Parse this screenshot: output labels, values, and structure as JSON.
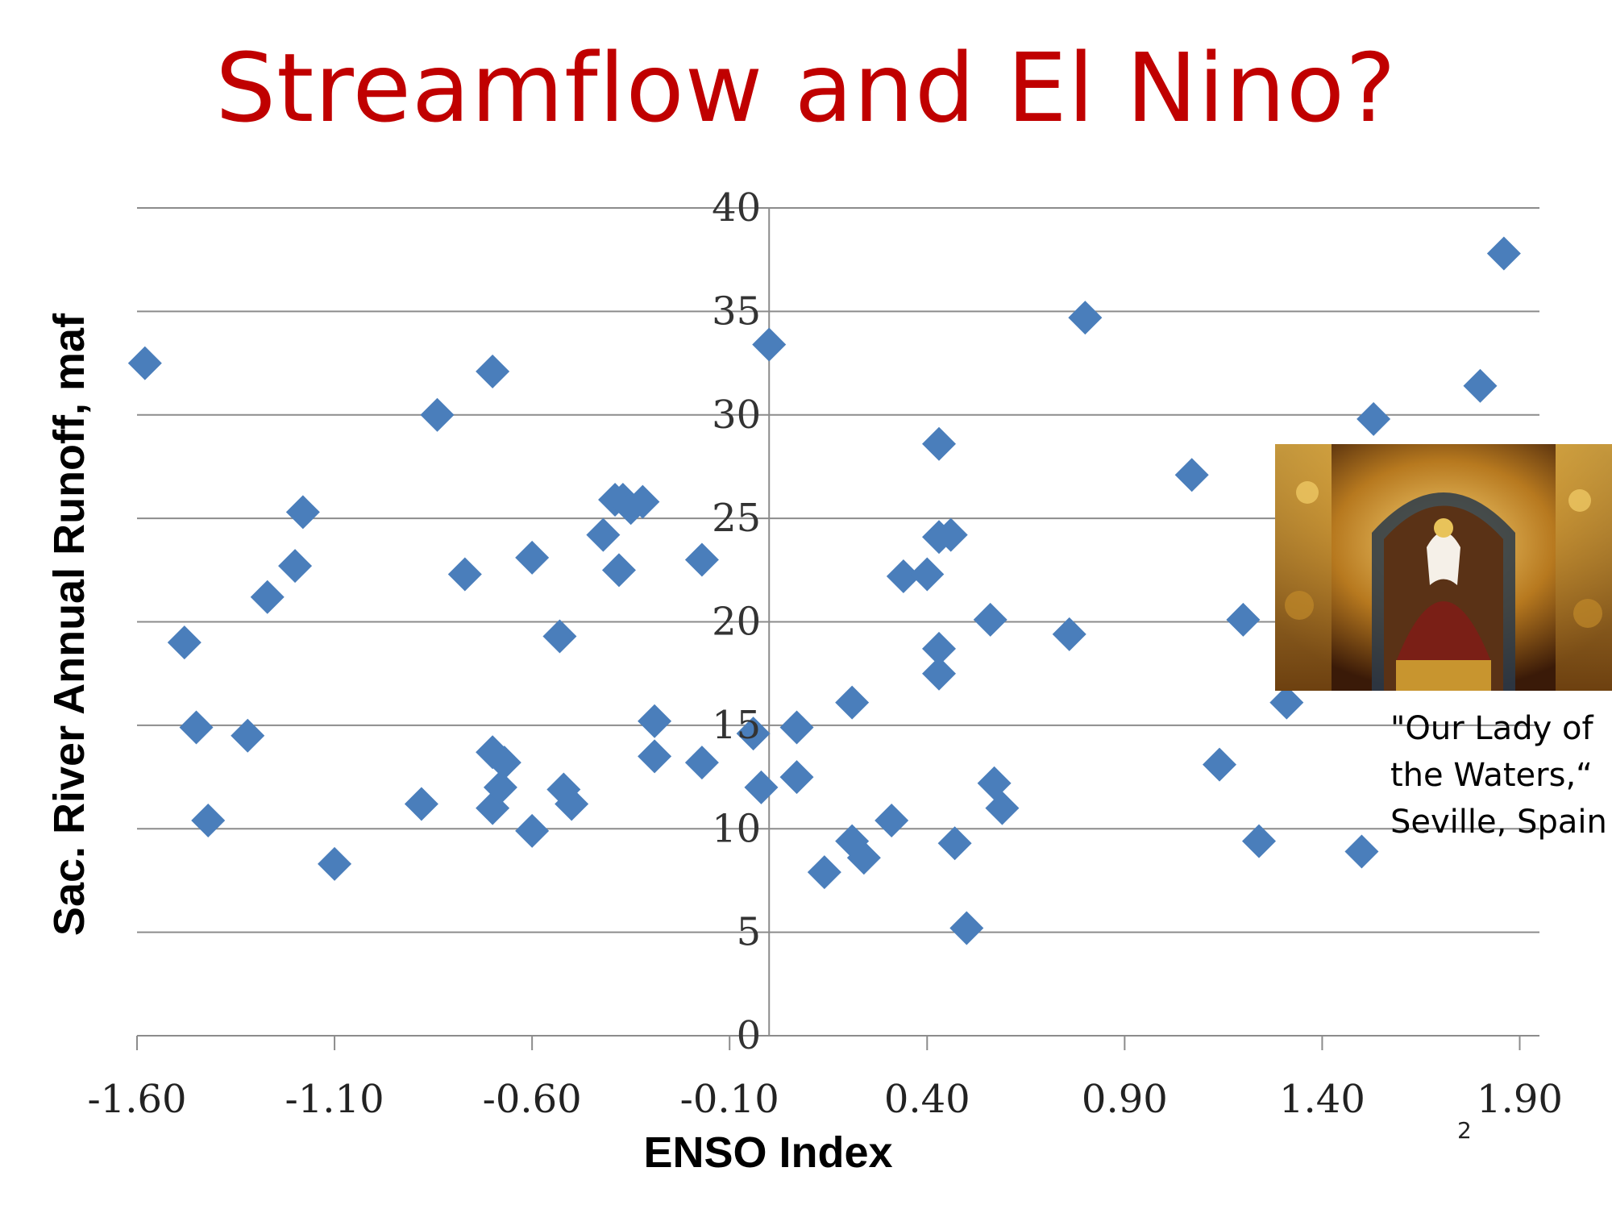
{
  "slide": {
    "title": "Streamflow and El Nino?",
    "caption_lines": [
      "\"Our Lady of",
      "the Waters,“",
      "Seville, Spain"
    ],
    "slide_number": "2",
    "photo_icon": "altar-madonna-photo"
  },
  "chart_data": {
    "type": "scatter",
    "title": "",
    "xlabel": "ENSO Index",
    "ylabel": "Sac.  River Annual Runoff, maf",
    "xlim": [
      -1.6,
      1.95
    ],
    "ylim": [
      0,
      40
    ],
    "x_ticks": [
      "-1.60",
      "-1.10",
      "-0.60",
      "-0.10",
      "0.40",
      "0.90",
      "1.40",
      "1.90"
    ],
    "y_ticks": [
      "0",
      "5",
      "10",
      "15",
      "20",
      "25",
      "30",
      "35",
      "40"
    ],
    "grid": "horizontal",
    "marker": "diamond",
    "color": "#4a7ebb",
    "series": [
      {
        "points": [
          [
            -1.58,
            32.5
          ],
          [
            -1.48,
            19.0
          ],
          [
            -1.45,
            14.9
          ],
          [
            -1.42,
            10.4
          ],
          [
            -1.32,
            14.5
          ],
          [
            -1.27,
            21.2
          ],
          [
            -1.2,
            22.7
          ],
          [
            -1.18,
            25.3
          ],
          [
            -1.1,
            8.3
          ],
          [
            -0.88,
            11.2
          ],
          [
            -0.84,
            30.0
          ],
          [
            -0.77,
            22.3
          ],
          [
            -0.7,
            32.1
          ],
          [
            -0.7,
            13.7
          ],
          [
            -0.7,
            11.0
          ],
          [
            -0.68,
            12.0
          ],
          [
            -0.67,
            13.2
          ],
          [
            -0.6,
            9.9
          ],
          [
            -0.6,
            23.1
          ],
          [
            -0.53,
            19.3
          ],
          [
            -0.52,
            11.9
          ],
          [
            -0.5,
            11.2
          ],
          [
            -0.42,
            24.2
          ],
          [
            -0.39,
            25.9
          ],
          [
            -0.38,
            22.5
          ],
          [
            -0.37,
            25.9
          ],
          [
            -0.35,
            25.5
          ],
          [
            -0.32,
            25.8
          ],
          [
            -0.29,
            15.2
          ],
          [
            -0.29,
            13.5
          ],
          [
            -0.17,
            23.0
          ],
          [
            -0.17,
            13.2
          ],
          [
            -0.04,
            14.6
          ],
          [
            -0.02,
            12.0
          ],
          [
            0.0,
            33.4
          ],
          [
            0.07,
            14.9
          ],
          [
            0.07,
            12.5
          ],
          [
            0.14,
            7.9
          ],
          [
            0.21,
            9.4
          ],
          [
            0.21,
            16.1
          ],
          [
            0.24,
            8.6
          ],
          [
            0.31,
            10.4
          ],
          [
            0.34,
            22.2
          ],
          [
            0.4,
            22.3
          ],
          [
            0.43,
            28.6
          ],
          [
            0.43,
            24.1
          ],
          [
            0.43,
            18.7
          ],
          [
            0.43,
            17.5
          ],
          [
            0.46,
            24.2
          ],
          [
            0.47,
            9.3
          ],
          [
            0.5,
            5.2
          ],
          [
            0.56,
            20.1
          ],
          [
            0.57,
            12.2
          ],
          [
            0.59,
            11.0
          ],
          [
            0.76,
            19.4
          ],
          [
            0.8,
            34.7
          ],
          [
            1.07,
            27.1
          ],
          [
            1.14,
            13.1
          ],
          [
            1.2,
            20.1
          ],
          [
            1.24,
            9.4
          ],
          [
            1.31,
            16.1
          ],
          [
            1.5,
            8.9
          ],
          [
            1.53,
            29.8
          ],
          [
            1.8,
            31.4
          ],
          [
            1.86,
            37.8
          ]
        ]
      }
    ]
  }
}
